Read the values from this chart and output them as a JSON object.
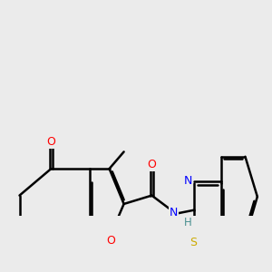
{
  "background_color": "#ebebeb",
  "bond_color": "#000000",
  "bond_width": 1.8,
  "figsize": [
    3.0,
    3.0
  ],
  "dpi": 100,
  "atom_colors": {
    "O": "#ff0000",
    "N": "#0000ff",
    "S": "#ccaa00",
    "H": "#4a9090",
    "C": "#000000"
  }
}
